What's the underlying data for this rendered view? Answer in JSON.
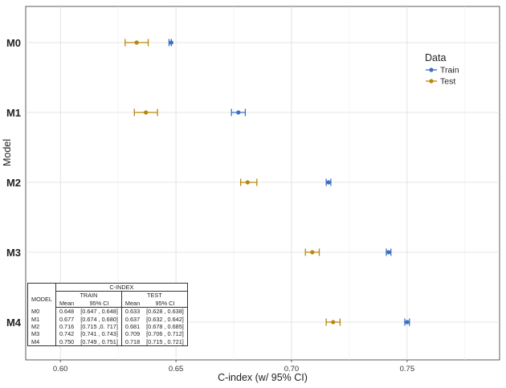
{
  "chart_data": {
    "type": "forest",
    "title": "",
    "xlabel": "C-index (w/ 95% CI)",
    "ylabel": "Model",
    "xlim": [
      0.585,
      0.79
    ],
    "xticks": [
      "0.60",
      "0.65",
      "0.70",
      "0.75"
    ],
    "xtick_values": [
      0.6,
      0.65,
      0.7,
      0.75
    ],
    "categories": [
      "M0",
      "M1",
      "M2",
      "M3",
      "M4"
    ],
    "legend": {
      "title": "Data",
      "position": "top-right"
    },
    "series": [
      {
        "name": "Train",
        "color": "#3a6fc4",
        "mean": [
          0.648,
          0.677,
          0.716,
          0.742,
          0.75
        ],
        "lower": [
          0.647,
          0.674,
          0.715,
          0.741,
          0.749
        ],
        "upper": [
          0.648,
          0.68,
          0.717,
          0.743,
          0.751
        ]
      },
      {
        "name": "Test",
        "color": "#b8860b",
        "mean": [
          0.633,
          0.637,
          0.681,
          0.709,
          0.718
        ],
        "lower": [
          0.628,
          0.632,
          0.678,
          0.706,
          0.715
        ],
        "upper": [
          0.638,
          0.642,
          0.685,
          0.712,
          0.721
        ]
      }
    ]
  },
  "table": {
    "group_header": "C-INDEX",
    "model_header": "MODEL",
    "train_header": "TRAIN",
    "test_header": "TEST",
    "mean_header": "Mean",
    "ci_header": "95% CI",
    "rows": [
      {
        "model": "M0",
        "train_mean": "0.648",
        "train_ci": "[0.647 , 0.648]",
        "test_mean": "0.633",
        "test_ci": "[0.628 , 0.638]"
      },
      {
        "model": "M1",
        "train_mean": "0.677",
        "train_ci": "[0.674 , 0.680]",
        "test_mean": "0.637",
        "test_ci": "[0.632 , 0.642]"
      },
      {
        "model": "M2",
        "train_mean": "0.716",
        "train_ci": "[0.715 ,0. 717]",
        "test_mean": "0.681",
        "test_ci": "[0.678 , 0.685]"
      },
      {
        "model": "M3",
        "train_mean": "0.742",
        "train_ci": "[0.741 , 0.743]",
        "test_mean": "0.709",
        "test_ci": "[0.706 , 0.712]"
      },
      {
        "model": "M4",
        "train_mean": "0.750",
        "train_ci": "[0.749 , 0.751]",
        "test_mean": "0.718",
        "test_ci": "[0.715 , 0.721]"
      }
    ]
  }
}
